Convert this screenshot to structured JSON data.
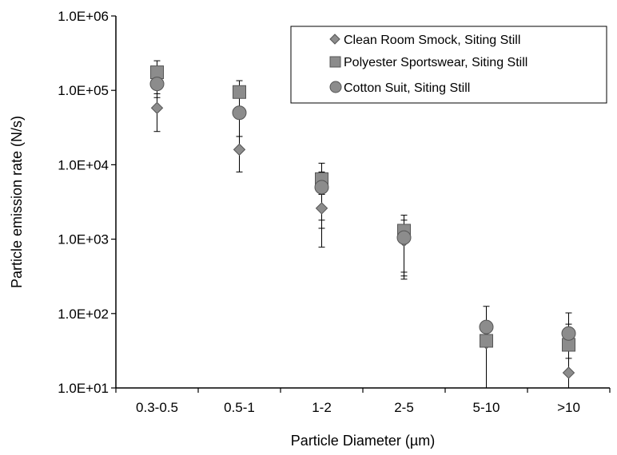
{
  "chart_data": {
    "type": "scatter",
    "y_scale": "log",
    "categories": [
      "0.3-0.5",
      "0.5-1",
      "1-2",
      "2-5",
      "5-10",
      ">10"
    ],
    "xlabel": "Particle Diameter (µm)",
    "ylabel": "Particle emission rate (N/s)",
    "ylim": [
      10,
      1000000
    ],
    "y_ticks": [
      "1.0E+01",
      "1.0E+02",
      "1.0E+03",
      "1.0E+04",
      "1.0E+05",
      "1.0E+06"
    ],
    "grid": false,
    "legend_position": "top-right",
    "series": [
      {
        "name": "Clean Room Smock, Siting Still",
        "marker": "diamond",
        "color": "#8c8c8c",
        "values": [
          58000,
          16000,
          2600,
          950,
          40,
          16
        ],
        "err_upper": [
          110000,
          24000,
          4000,
          1500,
          45,
          25
        ],
        "err_lower": [
          28000,
          8000,
          780,
          290,
          10,
          10
        ]
      },
      {
        "name": "Polyester Sportswear, Siting Still",
        "marker": "square",
        "color": "#8c8c8c",
        "values": [
          175000,
          95000,
          6400,
          1300,
          43,
          38
        ],
        "err_upper": [
          250000,
          135000,
          10500,
          2100,
          52,
          72
        ],
        "err_lower": [
          90000,
          52000,
          1400,
          320,
          10,
          10
        ]
      },
      {
        "name": "Cotton Suit, Siting Still",
        "marker": "circle",
        "color": "#8c8c8c",
        "values": [
          122000,
          50000,
          5000,
          1050,
          66,
          54
        ],
        "err_upper": [
          190000,
          110000,
          8000,
          1800,
          125,
          102
        ],
        "err_lower": [
          80000,
          24000,
          1800,
          360,
          10,
          10
        ]
      }
    ]
  }
}
